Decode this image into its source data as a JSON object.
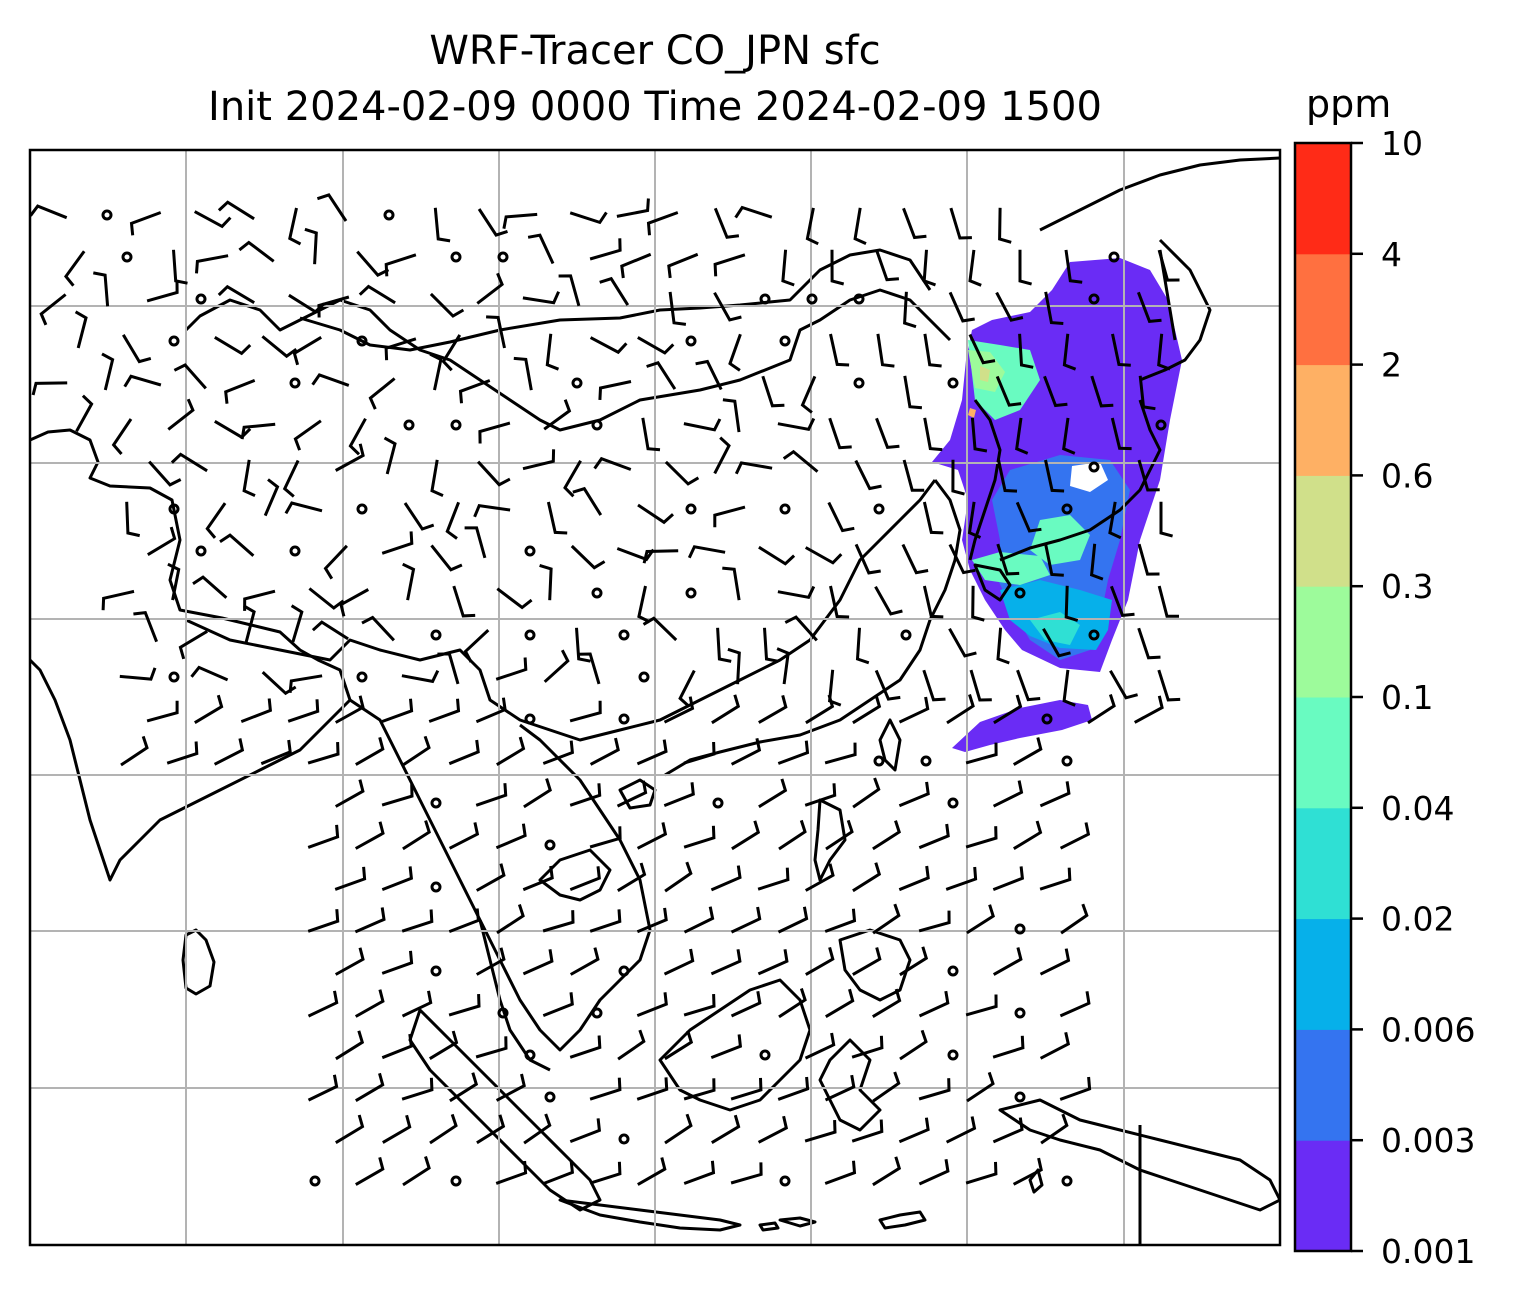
{
  "title": {
    "line1": "WRF-Tracer CO_JPN sfc",
    "line2": "Init 2024-02-09 0000 Time 2024-02-09 1500"
  },
  "colorbar": {
    "unit": "ppm",
    "ticks": [
      "0.001",
      "0.003",
      "0.006",
      "0.02",
      "0.04",
      "0.1",
      "0.3",
      "0.6",
      "2",
      "4",
      "10"
    ],
    "colors": [
      "#6a2cf5",
      "#3474f0",
      "#06b0ea",
      "#2fe0d4",
      "#69fbc1",
      "#9dfb9b",
      "#d0e08a",
      "#feb064",
      "#ff7040",
      "#ff2b17"
    ]
  },
  "map": {
    "variable": "CO tracer concentration",
    "overlay": "wind barbs",
    "grid": true,
    "plume_colors": {
      "level1": "#6a2cf5",
      "level2": "#3474f0",
      "level3": "#06b0ea",
      "level4": "#2fe0d4",
      "level5": "#69fbc1",
      "level6": "#9dfb9b",
      "level7": "#d0e08a",
      "level8": "#feb064"
    }
  }
}
